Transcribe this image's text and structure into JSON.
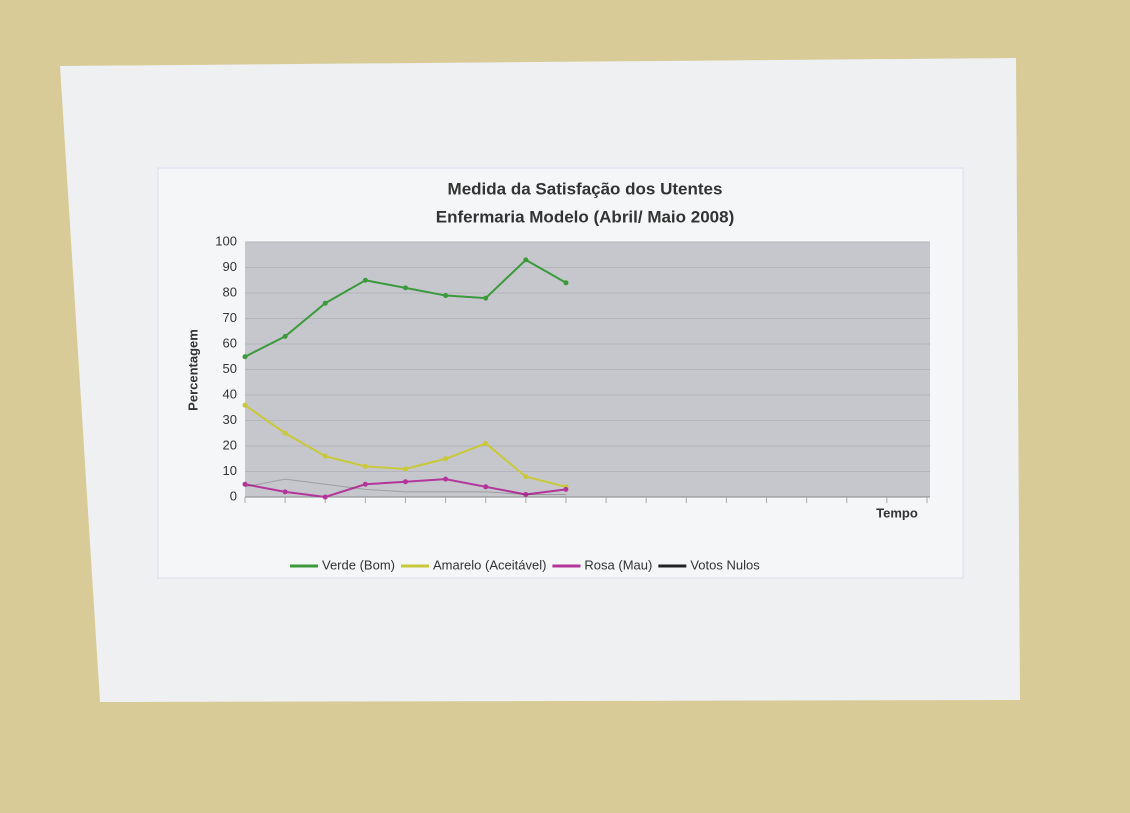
{
  "chart_data": {
    "type": "line",
    "title": "Medida da Satisfação dos Utentes",
    "subtitle": "Enfermaria Modelo (Abril/ Maio 2008)",
    "y_label": "Percentagem",
    "x_label": "Tempo",
    "categories": [
      null,
      null,
      null,
      null,
      null,
      null,
      null,
      null,
      null,
      null,
      null,
      null,
      null,
      null,
      null,
      null,
      null,
      null
    ],
    "series": [
      {
        "name": "Verde (Bom)",
        "color": "#3c9a3c",
        "values": [
          55,
          63,
          76,
          85,
          82,
          79,
          78,
          93,
          84,
          null,
          null,
          null,
          null,
          null,
          null,
          null,
          null,
          null
        ]
      },
      {
        "name": "Amarelo (Aceitável)",
        "color": "#c9c838",
        "values": [
          36,
          25,
          16,
          12,
          11,
          15,
          21,
          8,
          4,
          null,
          null,
          null,
          null,
          null,
          null,
          null,
          null,
          null
        ]
      },
      {
        "name": "Rosa (Mau)",
        "color": "#b4359a",
        "values": [
          5,
          2,
          0,
          5,
          6,
          7,
          4,
          1,
          3,
          null,
          null,
          null,
          null,
          null,
          null,
          null,
          null,
          null
        ]
      },
      {
        "name": "Votos Nulos",
        "color": "#222222",
        "values": [
          4,
          7,
          5,
          3,
          2,
          2,
          2,
          1,
          1,
          null,
          null,
          null,
          null,
          null,
          null,
          null,
          null,
          null
        ]
      }
    ],
    "ylim": [
      0,
      100
    ],
    "yticks": [
      0,
      10,
      20,
      30,
      40,
      50,
      60,
      70,
      80,
      90,
      100
    ],
    "grid": true,
    "legend": "bottom"
  }
}
